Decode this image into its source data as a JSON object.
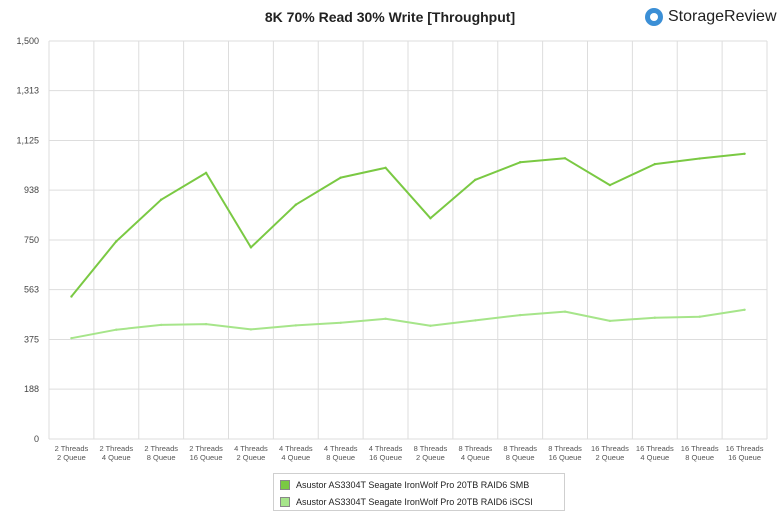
{
  "colors": {
    "smb": "#7ac943",
    "iscsi": "#a6e58a",
    "grid": "#dddddd",
    "brand": "#3b8fd6"
  },
  "brand": {
    "name": "StorageReview",
    "icon": "storagereview-logo-icon"
  },
  "chart_data": {
    "type": "line",
    "title": "8K 70% Read 30% Write [Throughput]",
    "xlabel": "",
    "ylabel": "",
    "ylim": [
      0,
      1500
    ],
    "y_ticks": [
      "1,500",
      "1,313",
      "1,125",
      "938",
      "750",
      "563",
      "375",
      "188",
      "0"
    ],
    "y_tick_values": [
      1500,
      1313,
      1125,
      938,
      750,
      563,
      375,
      188,
      0
    ],
    "grid": true,
    "legend_position": "bottom",
    "categories": [
      [
        "2 Threads",
        "2 Queue"
      ],
      [
        "2 Threads",
        "4 Queue"
      ],
      [
        "2 Threads",
        "8 Queue"
      ],
      [
        "2 Threads",
        "16 Queue"
      ],
      [
        "4 Threads",
        "2 Queue"
      ],
      [
        "4 Threads",
        "4 Queue"
      ],
      [
        "4 Threads",
        "8 Queue"
      ],
      [
        "4 Threads",
        "16 Queue"
      ],
      [
        "8 Threads",
        "2 Queue"
      ],
      [
        "8 Threads",
        "4 Queue"
      ],
      [
        "8 Threads",
        "8 Queue"
      ],
      [
        "8 Threads",
        "16 Queue"
      ],
      [
        "16 Threads",
        "2 Queue"
      ],
      [
        "16 Threads",
        "4 Queue"
      ],
      [
        "16 Threads",
        "8 Queue"
      ],
      [
        "16 Threads",
        "16 Queue"
      ]
    ],
    "series": [
      {
        "name": "Asustor AS3304T Seagate IronWolf Pro 20TB RAID6 SMB",
        "values": [
          537,
          745,
          902,
          1003,
          722,
          883,
          985,
          1022,
          832,
          977,
          1043,
          1058,
          957,
          1036,
          1057,
          1075
        ]
      },
      {
        "name": "Asustor AS3304T Seagate IronWolf Pro 20TB RAID6 iSCSI",
        "values": [
          380,
          412,
          430,
          433,
          413,
          428,
          438,
          453,
          427,
          447,
          467,
          480,
          445,
          457,
          461,
          487
        ]
      }
    ]
  }
}
